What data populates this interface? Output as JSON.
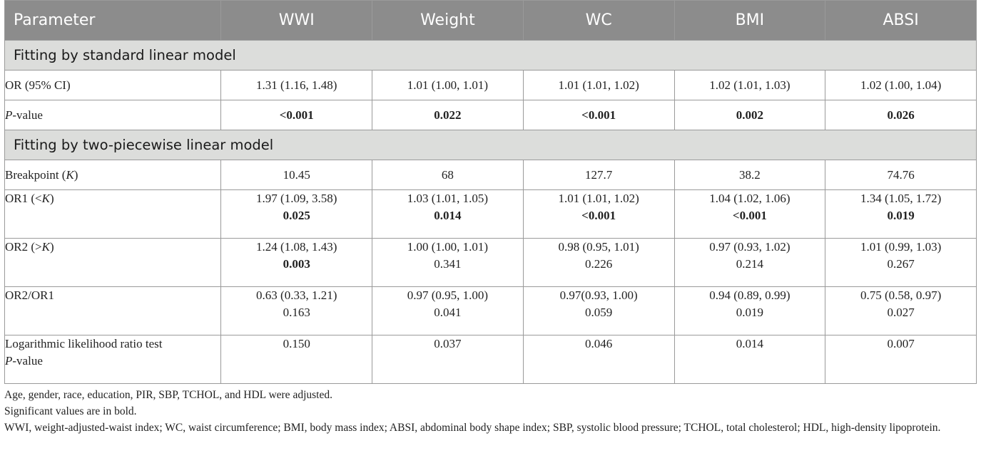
{
  "table": {
    "headers": [
      "Parameter",
      "WWI",
      "Weight",
      "WC",
      "BMI",
      "ABSI"
    ],
    "section1_title": "Fitting by standard linear model",
    "section2_title": "Fitting by two-piecewise linear model",
    "rows": {
      "or": {
        "label": "OR (95% CI)",
        "values": [
          "1.31 (1.16, 1.48)",
          "1.01 (1.00, 1.01)",
          "1.01 (1.01, 1.02)",
          "1.02 (1.01, 1.03)",
          "1.02 (1.00, 1.04)"
        ]
      },
      "pvalue": {
        "label_italic": "P",
        "label_rest": "-value",
        "values": [
          "<0.001",
          "0.022",
          "<0.001",
          "0.002",
          "0.026"
        ]
      },
      "breakpoint": {
        "label_prefix": "Breakpoint (",
        "label_italic": "K",
        "label_suffix": ")",
        "values": [
          "10.45",
          "68",
          "127.7",
          "38.2",
          "74.76"
        ]
      },
      "or1": {
        "label_prefix": "OR1 (<",
        "label_italic": "K",
        "label_suffix": ")",
        "values": [
          "1.97 (1.09, 3.58)",
          "1.03 (1.01, 1.05)",
          "1.01 (1.01, 1.02)",
          "1.04 (1.02, 1.06)",
          "1.34 (1.05, 1.72)"
        ],
        "pvalues": [
          "0.025",
          "0.014",
          "<0.001",
          "<0.001",
          "0.019"
        ]
      },
      "or2": {
        "label_prefix": "OR2 (>",
        "label_italic": "K",
        "label_suffix": ")",
        "values": [
          "1.24 (1.08, 1.43)",
          "1.00 (1.00, 1.01)",
          "0.98 (0.95, 1.01)",
          "0.97 (0.93, 1.02)",
          "1.01 (0.99, 1.03)"
        ],
        "pvalues": [
          "0.003",
          "0.341",
          "0.226",
          "0.214",
          "0.267"
        ]
      },
      "ratio": {
        "label": "OR2/OR1",
        "values": [
          "0.63 (0.33, 1.21)",
          "0.97 (0.95, 1.00)",
          "0.97(0.93, 1.00)",
          "0.94 (0.89, 0.99)",
          "0.75 (0.58, 0.97)"
        ],
        "pvalues": [
          "0.163",
          "0.041",
          "0.059",
          "0.019",
          "0.027"
        ]
      },
      "llr": {
        "label_line1": "Logarithmic likelihood ratio test",
        "label_line2_italic": "P",
        "label_line2_rest": "-value",
        "values": [
          "0.150",
          "0.037",
          "0.046",
          "0.014",
          "0.007"
        ]
      }
    }
  },
  "notes": [
    "Age, gender, race, education, PIR, SBP, TCHOL, and HDL were adjusted.",
    "Significant values are in bold.",
    "WWI, weight-adjusted-waist index; WC, waist circumference; BMI, body mass index; ABSI, abdominal body shape index; SBP, systolic blood pressure; TCHOL, total cholesterol; HDL, high-density lipoprotein."
  ]
}
